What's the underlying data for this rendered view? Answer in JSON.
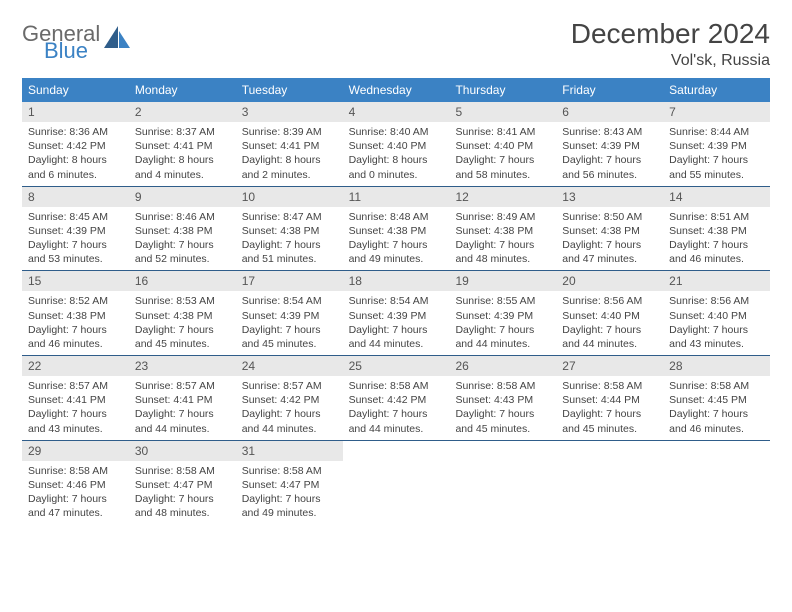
{
  "logo": {
    "text1": "General",
    "text2": "Blue"
  },
  "title": "December 2024",
  "location": "Vol'sk, Russia",
  "colors": {
    "header_bg": "#3b82c4",
    "header_text": "#ffffff",
    "daynum_bg": "#e8e8e8",
    "week_divider": "#2f5d8a",
    "body_text": "#444444",
    "logo_gray": "#6a6a6a",
    "logo_blue": "#3b82c4"
  },
  "day_labels": [
    "Sunday",
    "Monday",
    "Tuesday",
    "Wednesday",
    "Thursday",
    "Friday",
    "Saturday"
  ],
  "weeks": [
    [
      {
        "n": "1",
        "sr": "Sunrise: 8:36 AM",
        "ss": "Sunset: 4:42 PM",
        "dl": "Daylight: 8 hours and 6 minutes."
      },
      {
        "n": "2",
        "sr": "Sunrise: 8:37 AM",
        "ss": "Sunset: 4:41 PM",
        "dl": "Daylight: 8 hours and 4 minutes."
      },
      {
        "n": "3",
        "sr": "Sunrise: 8:39 AM",
        "ss": "Sunset: 4:41 PM",
        "dl": "Daylight: 8 hours and 2 minutes."
      },
      {
        "n": "4",
        "sr": "Sunrise: 8:40 AM",
        "ss": "Sunset: 4:40 PM",
        "dl": "Daylight: 8 hours and 0 minutes."
      },
      {
        "n": "5",
        "sr": "Sunrise: 8:41 AM",
        "ss": "Sunset: 4:40 PM",
        "dl": "Daylight: 7 hours and 58 minutes."
      },
      {
        "n": "6",
        "sr": "Sunrise: 8:43 AM",
        "ss": "Sunset: 4:39 PM",
        "dl": "Daylight: 7 hours and 56 minutes."
      },
      {
        "n": "7",
        "sr": "Sunrise: 8:44 AM",
        "ss": "Sunset: 4:39 PM",
        "dl": "Daylight: 7 hours and 55 minutes."
      }
    ],
    [
      {
        "n": "8",
        "sr": "Sunrise: 8:45 AM",
        "ss": "Sunset: 4:39 PM",
        "dl": "Daylight: 7 hours and 53 minutes."
      },
      {
        "n": "9",
        "sr": "Sunrise: 8:46 AM",
        "ss": "Sunset: 4:38 PM",
        "dl": "Daylight: 7 hours and 52 minutes."
      },
      {
        "n": "10",
        "sr": "Sunrise: 8:47 AM",
        "ss": "Sunset: 4:38 PM",
        "dl": "Daylight: 7 hours and 51 minutes."
      },
      {
        "n": "11",
        "sr": "Sunrise: 8:48 AM",
        "ss": "Sunset: 4:38 PM",
        "dl": "Daylight: 7 hours and 49 minutes."
      },
      {
        "n": "12",
        "sr": "Sunrise: 8:49 AM",
        "ss": "Sunset: 4:38 PM",
        "dl": "Daylight: 7 hours and 48 minutes."
      },
      {
        "n": "13",
        "sr": "Sunrise: 8:50 AM",
        "ss": "Sunset: 4:38 PM",
        "dl": "Daylight: 7 hours and 47 minutes."
      },
      {
        "n": "14",
        "sr": "Sunrise: 8:51 AM",
        "ss": "Sunset: 4:38 PM",
        "dl": "Daylight: 7 hours and 46 minutes."
      }
    ],
    [
      {
        "n": "15",
        "sr": "Sunrise: 8:52 AM",
        "ss": "Sunset: 4:38 PM",
        "dl": "Daylight: 7 hours and 46 minutes."
      },
      {
        "n": "16",
        "sr": "Sunrise: 8:53 AM",
        "ss": "Sunset: 4:38 PM",
        "dl": "Daylight: 7 hours and 45 minutes."
      },
      {
        "n": "17",
        "sr": "Sunrise: 8:54 AM",
        "ss": "Sunset: 4:39 PM",
        "dl": "Daylight: 7 hours and 45 minutes."
      },
      {
        "n": "18",
        "sr": "Sunrise: 8:54 AM",
        "ss": "Sunset: 4:39 PM",
        "dl": "Daylight: 7 hours and 44 minutes."
      },
      {
        "n": "19",
        "sr": "Sunrise: 8:55 AM",
        "ss": "Sunset: 4:39 PM",
        "dl": "Daylight: 7 hours and 44 minutes."
      },
      {
        "n": "20",
        "sr": "Sunrise: 8:56 AM",
        "ss": "Sunset: 4:40 PM",
        "dl": "Daylight: 7 hours and 44 minutes."
      },
      {
        "n": "21",
        "sr": "Sunrise: 8:56 AM",
        "ss": "Sunset: 4:40 PM",
        "dl": "Daylight: 7 hours and 43 minutes."
      }
    ],
    [
      {
        "n": "22",
        "sr": "Sunrise: 8:57 AM",
        "ss": "Sunset: 4:41 PM",
        "dl": "Daylight: 7 hours and 43 minutes."
      },
      {
        "n": "23",
        "sr": "Sunrise: 8:57 AM",
        "ss": "Sunset: 4:41 PM",
        "dl": "Daylight: 7 hours and 44 minutes."
      },
      {
        "n": "24",
        "sr": "Sunrise: 8:57 AM",
        "ss": "Sunset: 4:42 PM",
        "dl": "Daylight: 7 hours and 44 minutes."
      },
      {
        "n": "25",
        "sr": "Sunrise: 8:58 AM",
        "ss": "Sunset: 4:42 PM",
        "dl": "Daylight: 7 hours and 44 minutes."
      },
      {
        "n": "26",
        "sr": "Sunrise: 8:58 AM",
        "ss": "Sunset: 4:43 PM",
        "dl": "Daylight: 7 hours and 45 minutes."
      },
      {
        "n": "27",
        "sr": "Sunrise: 8:58 AM",
        "ss": "Sunset: 4:44 PM",
        "dl": "Daylight: 7 hours and 45 minutes."
      },
      {
        "n": "28",
        "sr": "Sunrise: 8:58 AM",
        "ss": "Sunset: 4:45 PM",
        "dl": "Daylight: 7 hours and 46 minutes."
      }
    ],
    [
      {
        "n": "29",
        "sr": "Sunrise: 8:58 AM",
        "ss": "Sunset: 4:46 PM",
        "dl": "Daylight: 7 hours and 47 minutes."
      },
      {
        "n": "30",
        "sr": "Sunrise: 8:58 AM",
        "ss": "Sunset: 4:47 PM",
        "dl": "Daylight: 7 hours and 48 minutes."
      },
      {
        "n": "31",
        "sr": "Sunrise: 8:58 AM",
        "ss": "Sunset: 4:47 PM",
        "dl": "Daylight: 7 hours and 49 minutes."
      },
      {
        "n": "",
        "sr": "",
        "ss": "",
        "dl": "",
        "empty": true
      },
      {
        "n": "",
        "sr": "",
        "ss": "",
        "dl": "",
        "empty": true
      },
      {
        "n": "",
        "sr": "",
        "ss": "",
        "dl": "",
        "empty": true
      },
      {
        "n": "",
        "sr": "",
        "ss": "",
        "dl": "",
        "empty": true
      }
    ]
  ]
}
